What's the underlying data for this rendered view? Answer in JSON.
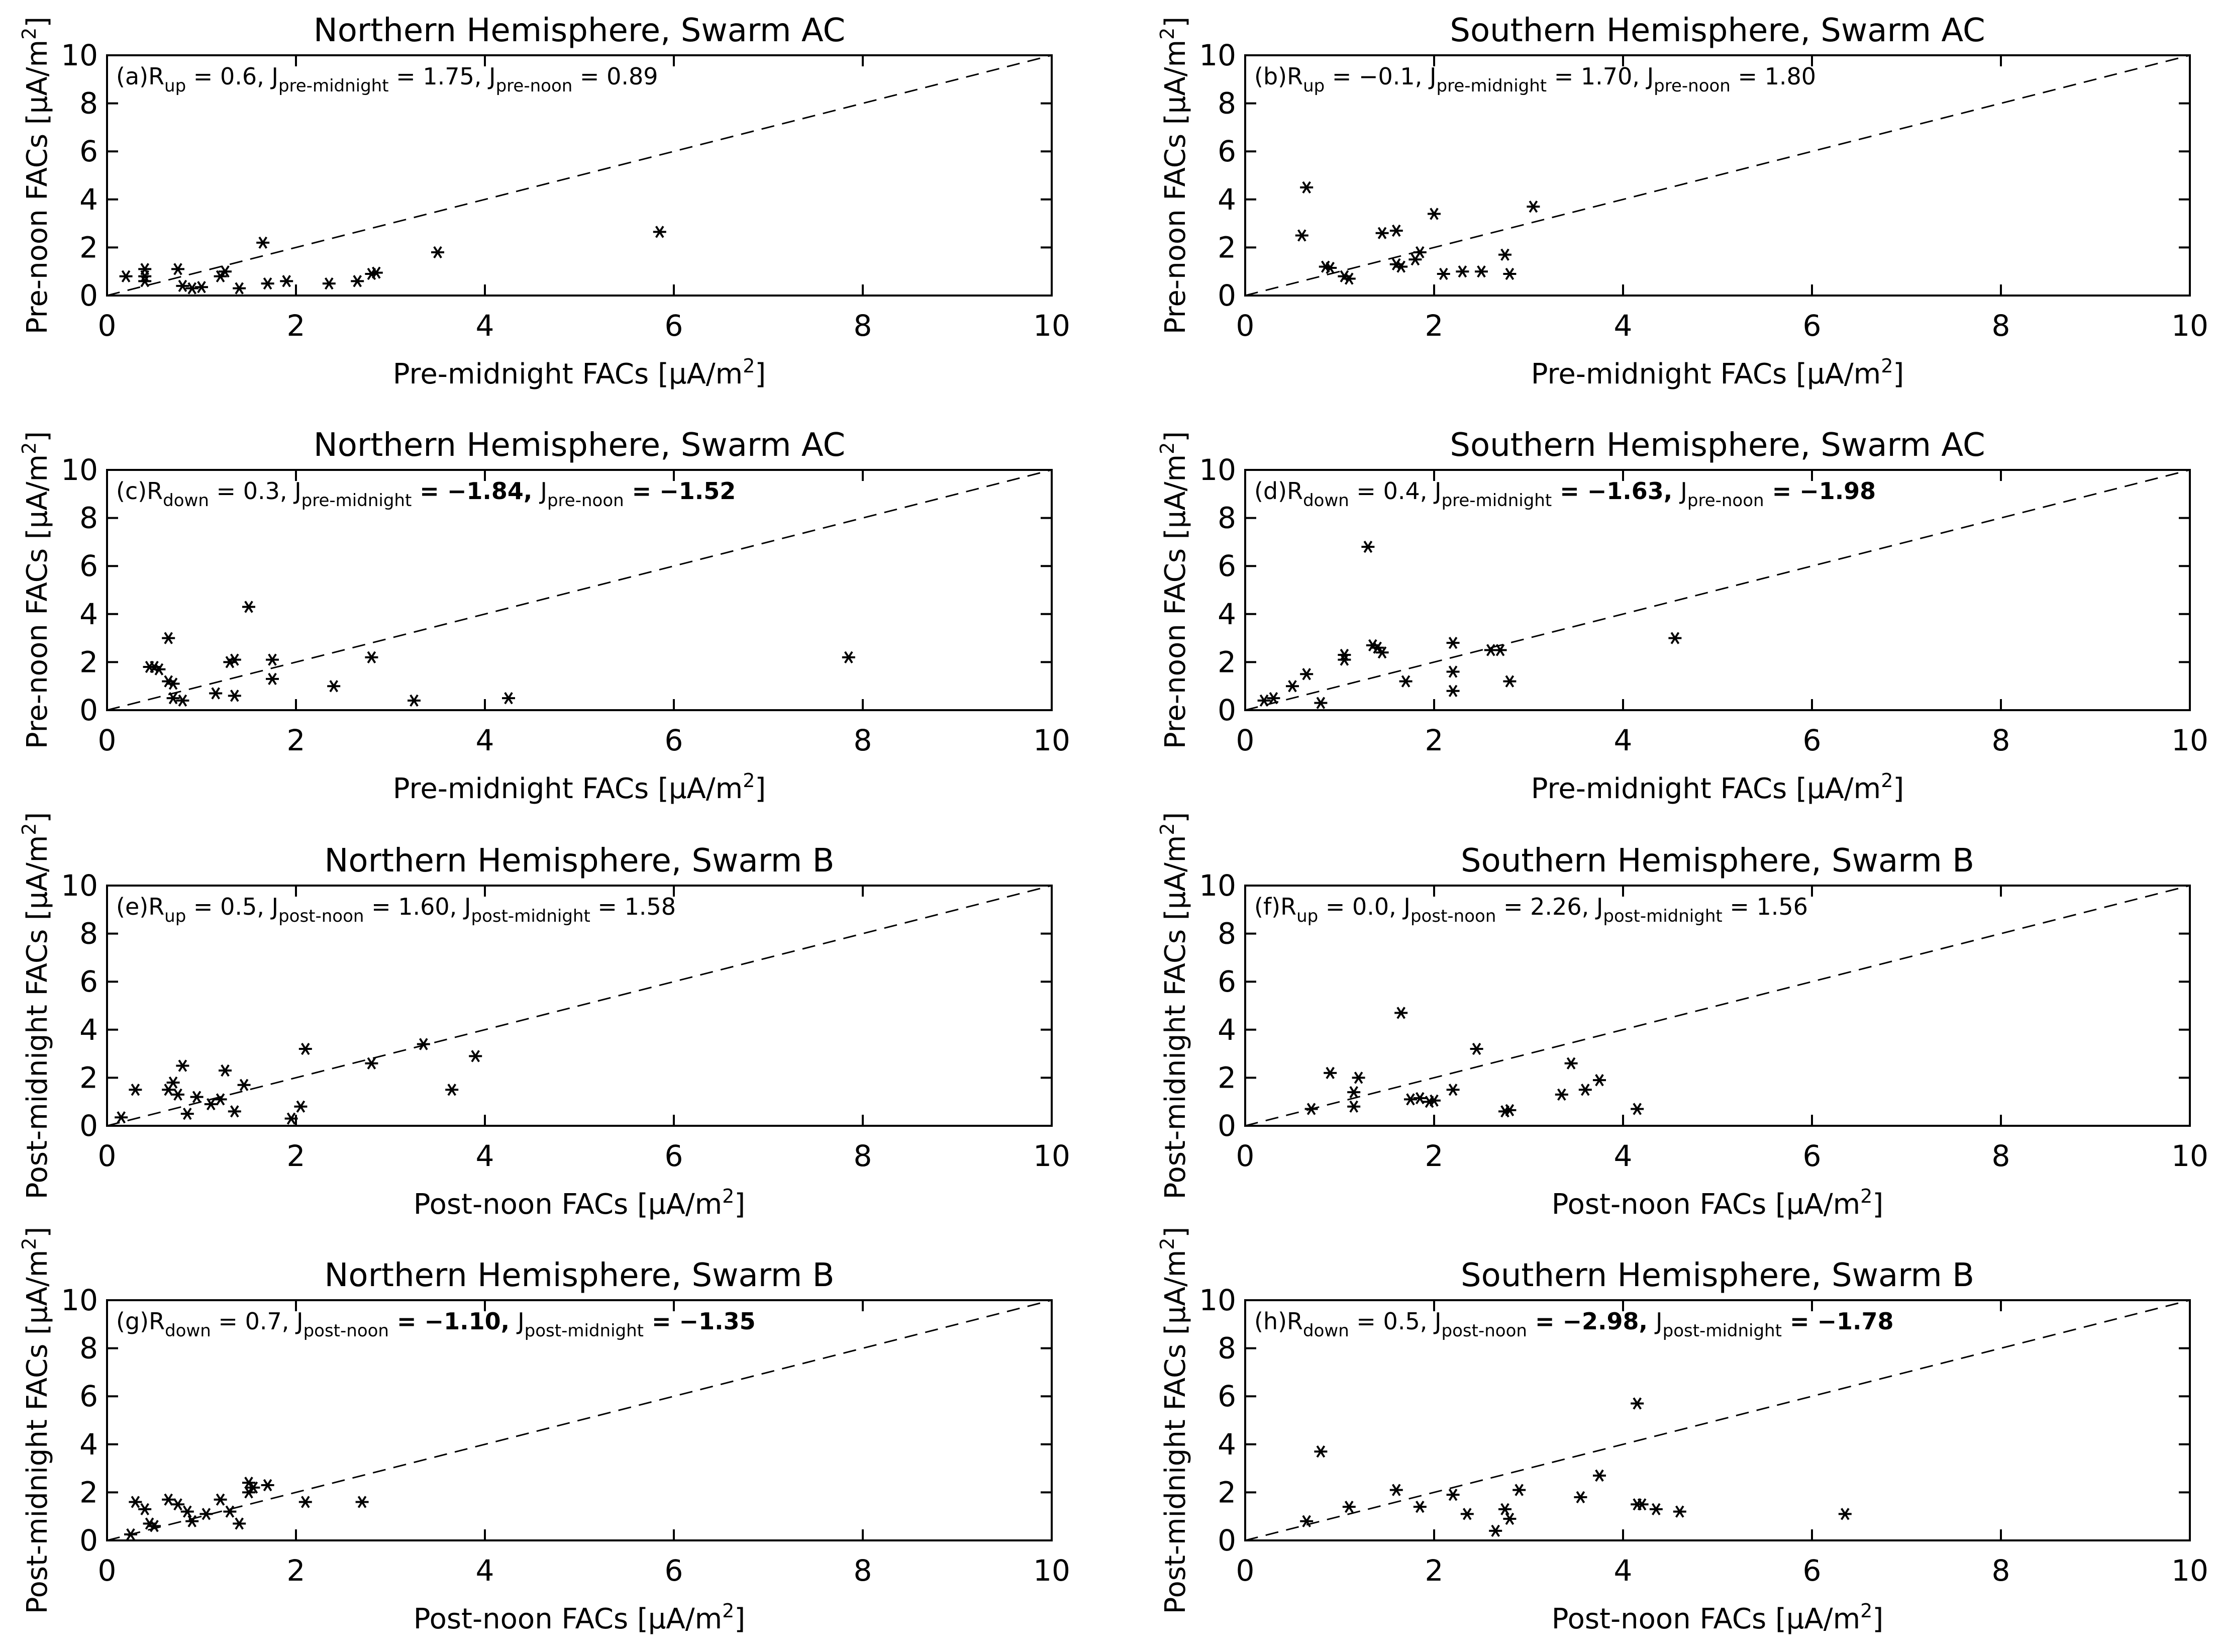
{
  "figure": {
    "symbols": {
      "mu": "μ",
      "minus": "−"
    },
    "colors": {
      "axis": "#000000",
      "marker": "#000000",
      "diagonal": "#000000"
    }
  },
  "chart_data": [
    {
      "id": "a",
      "type": "scatter",
      "title": "Northern Hemisphere, Swarm AC",
      "xlabel": "Pre-midnight FACs [μA/m²]",
      "ylabel": "Pre-noon FACs [μA/m²]",
      "xlim": [
        0,
        10
      ],
      "ylim": [
        0,
        10
      ],
      "xticks": [
        "0",
        "2",
        "4",
        "6",
        "8",
        "10"
      ],
      "yticks": [
        "0",
        "2",
        "4",
        "6",
        "8",
        "10"
      ],
      "annotation": {
        "label": "(a)",
        "r_sub": "up",
        "r_val": " = 0.6, ",
        "j1_sub": "pre-midnight",
        "j1_val": " = 1.75, ",
        "j2_sub": "pre-noon",
        "j2_val": " = 0.89",
        "bold": false
      },
      "diagonal": "y = x (dashed)",
      "points": [
        [
          0.2,
          0.8
        ],
        [
          0.4,
          0.8
        ],
        [
          0.4,
          1.1
        ],
        [
          0.4,
          0.6
        ],
        [
          0.75,
          1.1
        ],
        [
          0.8,
          0.4
        ],
        [
          0.9,
          0.3
        ],
        [
          1.0,
          0.35
        ],
        [
          1.2,
          0.8
        ],
        [
          1.25,
          1.0
        ],
        [
          1.4,
          0.3
        ],
        [
          1.65,
          2.2
        ],
        [
          1.7,
          0.5
        ],
        [
          1.9,
          0.6
        ],
        [
          2.35,
          0.5
        ],
        [
          2.65,
          0.6
        ],
        [
          2.8,
          0.9
        ],
        [
          2.85,
          0.95
        ],
        [
          3.5,
          1.8
        ],
        [
          5.85,
          2.65
        ]
      ]
    },
    {
      "id": "b",
      "type": "scatter",
      "title": "Southern Hemisphere, Swarm AC",
      "xlabel": "Pre-midnight FACs [μA/m²]",
      "ylabel": "Pre-noon FACs [μA/m²]",
      "xlim": [
        0,
        10
      ],
      "ylim": [
        0,
        10
      ],
      "xticks": [
        "0",
        "2",
        "4",
        "6",
        "8",
        "10"
      ],
      "yticks": [
        "0",
        "2",
        "4",
        "6",
        "8",
        "10"
      ],
      "annotation": {
        "label": "(b)",
        "r_sub": "up",
        "r_val": " = −0.1, ",
        "j1_sub": "pre-midnight",
        "j1_val": " = 1.70, ",
        "j2_sub": "pre-noon",
        "j2_val": " = 1.80",
        "bold": false
      },
      "diagonal": "y = x (dashed)",
      "points": [
        [
          0.6,
          2.5
        ],
        [
          0.65,
          4.5
        ],
        [
          0.85,
          1.2
        ],
        [
          0.9,
          1.15
        ],
        [
          1.05,
          0.8
        ],
        [
          1.1,
          0.7
        ],
        [
          1.45,
          2.6
        ],
        [
          1.6,
          2.7
        ],
        [
          1.6,
          1.3
        ],
        [
          1.65,
          1.2
        ],
        [
          1.8,
          1.5
        ],
        [
          1.85,
          1.8
        ],
        [
          2.0,
          3.4
        ],
        [
          2.1,
          0.9
        ],
        [
          2.3,
          1.0
        ],
        [
          2.5,
          1.0
        ],
        [
          2.75,
          1.7
        ],
        [
          2.8,
          0.9
        ],
        [
          3.05,
          3.7
        ]
      ]
    },
    {
      "id": "c",
      "type": "scatter",
      "title": "Northern Hemisphere, Swarm AC",
      "xlabel": "Pre-midnight FACs [μA/m²]",
      "ylabel": "Pre-noon FACs [μA/m²]",
      "xlim": [
        0,
        10
      ],
      "ylim": [
        0,
        10
      ],
      "xticks": [
        "0",
        "2",
        "4",
        "6",
        "8",
        "10"
      ],
      "yticks": [
        "0",
        "2",
        "4",
        "6",
        "8",
        "10"
      ],
      "annotation": {
        "label": "(c)",
        "r_sub": "down",
        "r_val": " = 0.3, ",
        "j1_sub": "pre-midnight",
        "j1_val": " = −1.84, ",
        "j2_sub": "pre-noon",
        "j2_val": " = −1.52",
        "bold": true
      },
      "diagonal": "y = x (dashed)",
      "points": [
        [
          0.45,
          1.8
        ],
        [
          0.5,
          1.8
        ],
        [
          0.55,
          1.7
        ],
        [
          0.65,
          3.0
        ],
        [
          0.65,
          1.2
        ],
        [
          0.7,
          1.1
        ],
        [
          0.7,
          0.5
        ],
        [
          0.8,
          0.4
        ],
        [
          1.15,
          0.7
        ],
        [
          1.3,
          2.0
        ],
        [
          1.35,
          2.1
        ],
        [
          1.35,
          0.6
        ],
        [
          1.5,
          4.3
        ],
        [
          1.75,
          2.1
        ],
        [
          1.75,
          1.3
        ],
        [
          2.4,
          1.0
        ],
        [
          2.8,
          2.2
        ],
        [
          3.25,
          0.4
        ],
        [
          4.25,
          0.5
        ],
        [
          7.85,
          2.2
        ]
      ]
    },
    {
      "id": "d",
      "type": "scatter",
      "title": "Southern Hemisphere, Swarm AC",
      "xlabel": "Pre-midnight FACs [μA/m²]",
      "ylabel": "Pre-noon FACs [μA/m²]",
      "xlim": [
        0,
        10
      ],
      "ylim": [
        0,
        10
      ],
      "xticks": [
        "0",
        "2",
        "4",
        "6",
        "8",
        "10"
      ],
      "yticks": [
        "0",
        "2",
        "4",
        "6",
        "8",
        "10"
      ],
      "annotation": {
        "label": "(d)",
        "r_sub": "down",
        "r_val": " = 0.4, ",
        "j1_sub": "pre-midnight",
        "j1_val": " = −1.63, ",
        "j2_sub": "pre-noon",
        "j2_val": " = −1.98",
        "bold": true
      },
      "diagonal": "y = x (dashed)",
      "points": [
        [
          0.2,
          0.4
        ],
        [
          0.3,
          0.5
        ],
        [
          0.5,
          1.0
        ],
        [
          0.65,
          1.5
        ],
        [
          0.8,
          0.3
        ],
        [
          1.05,
          2.1
        ],
        [
          1.05,
          2.3
        ],
        [
          1.3,
          6.8
        ],
        [
          1.35,
          2.7
        ],
        [
          1.4,
          2.6
        ],
        [
          1.45,
          2.4
        ],
        [
          1.7,
          1.2
        ],
        [
          2.2,
          2.8
        ],
        [
          2.2,
          1.6
        ],
        [
          2.2,
          0.8
        ],
        [
          2.6,
          2.5
        ],
        [
          2.7,
          2.5
        ],
        [
          2.8,
          1.2
        ],
        [
          4.55,
          3.0
        ]
      ]
    },
    {
      "id": "e",
      "type": "scatter",
      "title": "Northern Hemisphere, Swarm B",
      "xlabel": "Post-noon FACs [μA/m²]",
      "ylabel": "Post-midnight FACs [μA/m²]",
      "xlim": [
        0,
        10
      ],
      "ylim": [
        0,
        10
      ],
      "xticks": [
        "0",
        "2",
        "4",
        "6",
        "8",
        "10"
      ],
      "yticks": [
        "0",
        "2",
        "4",
        "6",
        "8",
        "10"
      ],
      "annotation": {
        "label": "(e)",
        "r_sub": "up",
        "r_val": " = 0.5, ",
        "j1_sub": "post-noon",
        "j1_val": " = 1.60, ",
        "j2_sub": "post-midnight",
        "j2_val": " = 1.58",
        "bold": false
      },
      "diagonal": "y = x (dashed)",
      "points": [
        [
          0.15,
          0.35
        ],
        [
          0.3,
          1.5
        ],
        [
          0.65,
          1.5
        ],
        [
          0.7,
          1.8
        ],
        [
          0.75,
          1.3
        ],
        [
          0.8,
          2.5
        ],
        [
          0.85,
          0.5
        ],
        [
          0.95,
          1.2
        ],
        [
          1.1,
          0.9
        ],
        [
          1.2,
          1.1
        ],
        [
          1.25,
          2.3
        ],
        [
          1.35,
          0.6
        ],
        [
          1.45,
          1.7
        ],
        [
          1.95,
          0.3
        ],
        [
          2.05,
          0.8
        ],
        [
          2.1,
          3.2
        ],
        [
          2.8,
          2.6
        ],
        [
          3.35,
          3.4
        ],
        [
          3.65,
          1.5
        ],
        [
          3.9,
          2.9
        ]
      ]
    },
    {
      "id": "f",
      "type": "scatter",
      "title": "Southern Hemisphere, Swarm B",
      "xlabel": "Post-noon FACs [μA/m²]",
      "ylabel": "Post-midnight FACs [μA/m²]",
      "xlim": [
        0,
        10
      ],
      "ylim": [
        0,
        10
      ],
      "xticks": [
        "0",
        "2",
        "4",
        "6",
        "8",
        "10"
      ],
      "yticks": [
        "0",
        "2",
        "4",
        "6",
        "8",
        "10"
      ],
      "annotation": {
        "label": "(f)",
        "r_sub": "up",
        "r_val": " = 0.0, ",
        "j1_sub": "post-noon",
        "j1_val": " = 2.26, ",
        "j2_sub": "post-midnight",
        "j2_val": " = 1.56",
        "bold": false
      },
      "diagonal": "y = x (dashed)",
      "points": [
        [
          0.7,
          0.7
        ],
        [
          0.9,
          2.2
        ],
        [
          1.15,
          1.4
        ],
        [
          1.15,
          0.8
        ],
        [
          1.2,
          2.0
        ],
        [
          1.65,
          4.7
        ],
        [
          1.75,
          1.1
        ],
        [
          1.85,
          1.15
        ],
        [
          1.95,
          1.0
        ],
        [
          2.0,
          1.05
        ],
        [
          2.2,
          1.5
        ],
        [
          2.45,
          3.2
        ],
        [
          2.75,
          0.6
        ],
        [
          2.8,
          0.65
        ],
        [
          3.35,
          1.3
        ],
        [
          3.45,
          2.6
        ],
        [
          3.6,
          1.5
        ],
        [
          3.75,
          1.9
        ],
        [
          4.15,
          0.7
        ]
      ]
    },
    {
      "id": "g",
      "type": "scatter",
      "title": "Northern Hemisphere, Swarm B",
      "xlabel": "Post-noon FACs [μA/m²]",
      "ylabel": "Post-midnight FACs [μA/m²]",
      "xlim": [
        0,
        10
      ],
      "ylim": [
        0,
        10
      ],
      "xticks": [
        "0",
        "2",
        "4",
        "6",
        "8",
        "10"
      ],
      "yticks": [
        "0",
        "2",
        "4",
        "6",
        "8",
        "10"
      ],
      "annotation": {
        "label": "(g)",
        "r_sub": "down",
        "r_val": " = 0.7, ",
        "j1_sub": "post-noon",
        "j1_val": " = −1.10, ",
        "j2_sub": "post-midnight",
        "j2_val": " = −1.35",
        "bold": true
      },
      "diagonal": "y = x (dashed)",
      "points": [
        [
          0.25,
          0.25
        ],
        [
          0.3,
          1.6
        ],
        [
          0.4,
          1.3
        ],
        [
          0.45,
          0.7
        ],
        [
          0.5,
          0.6
        ],
        [
          0.65,
          1.7
        ],
        [
          0.75,
          1.5
        ],
        [
          0.85,
          1.2
        ],
        [
          0.9,
          0.8
        ],
        [
          1.05,
          1.1
        ],
        [
          1.2,
          1.7
        ],
        [
          1.3,
          1.2
        ],
        [
          1.4,
          0.7
        ],
        [
          1.5,
          2.4
        ],
        [
          1.5,
          2.0
        ],
        [
          1.55,
          2.2
        ],
        [
          1.7,
          2.3
        ],
        [
          2.1,
          1.6
        ],
        [
          2.7,
          1.6
        ]
      ]
    },
    {
      "id": "h",
      "type": "scatter",
      "title": "Southern Hemisphere, Swarm B",
      "xlabel": "Post-noon FACs [μA/m²]",
      "ylabel": "Post-midnight FACs [μA/m²]",
      "xlim": [
        0,
        10
      ],
      "ylim": [
        0,
        10
      ],
      "xticks": [
        "0",
        "2",
        "4",
        "6",
        "8",
        "10"
      ],
      "yticks": [
        "0",
        "2",
        "4",
        "6",
        "8",
        "10"
      ],
      "annotation": {
        "label": "(h)",
        "r_sub": "down",
        "r_val": " = 0.5, ",
        "j1_sub": "post-noon",
        "j1_val": " = −2.98, ",
        "j2_sub": "post-midnight",
        "j2_val": " = −1.78",
        "bold": true
      },
      "diagonal": "y = x (dashed)",
      "points": [
        [
          0.65,
          0.8
        ],
        [
          0.8,
          3.7
        ],
        [
          1.1,
          1.4
        ],
        [
          1.6,
          2.1
        ],
        [
          1.85,
          1.4
        ],
        [
          2.2,
          1.9
        ],
        [
          2.35,
          1.1
        ],
        [
          2.65,
          0.4
        ],
        [
          2.75,
          1.3
        ],
        [
          2.8,
          0.9
        ],
        [
          2.9,
          2.1
        ],
        [
          3.55,
          1.8
        ],
        [
          3.75,
          2.7
        ],
        [
          4.15,
          5.7
        ],
        [
          4.15,
          1.5
        ],
        [
          4.2,
          1.5
        ],
        [
          4.35,
          1.3
        ],
        [
          4.6,
          1.2
        ],
        [
          6.35,
          1.1
        ]
      ]
    }
  ]
}
